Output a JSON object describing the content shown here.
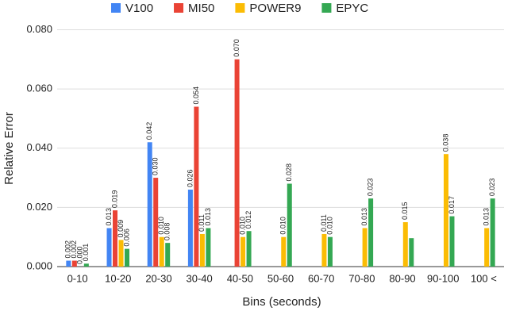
{
  "chart_data": {
    "type": "bar",
    "x_label": "Bins (seconds)",
    "y_label": "Relative Error",
    "categories": [
      "0-10",
      "10-20",
      "20-30",
      "30-40",
      "40-50",
      "50-60",
      "60-70",
      "70-80",
      "80-90",
      "90-100",
      "100 <"
    ],
    "series": [
      {
        "name": "V100",
        "color": "#4285f4",
        "values": [
          0.002,
          0.013,
          0.042,
          0.026,
          null,
          null,
          null,
          null,
          null,
          null,
          null
        ],
        "value_labels": [
          "0.002",
          "0.013",
          "0.042",
          "0.026",
          null,
          null,
          null,
          null,
          null,
          null,
          null
        ]
      },
      {
        "name": "MI50",
        "color": "#ea4335",
        "values": [
          0.002,
          0.019,
          0.03,
          0.054,
          0.07,
          null,
          null,
          null,
          null,
          null,
          null
        ],
        "value_labels": [
          "0.002",
          "0.019",
          "0.030",
          "0.054",
          "0.070",
          null,
          null,
          null,
          null,
          null,
          null
        ]
      },
      {
        "name": "POWER9",
        "color": "#fbbc04",
        "values": [
          0,
          0.009,
          0.01,
          0.011,
          0.01,
          0.01,
          0.011,
          0.013,
          0.015,
          0.038,
          0.013
        ],
        "value_labels": [
          "0.000",
          "0.009",
          "0.010",
          "0.011",
          "0.010",
          "0.010",
          "0.011",
          "0.013",
          "0.015",
          "0.038",
          "0.013"
        ]
      },
      {
        "name": "EPYC",
        "color": "#34a853",
        "values": [
          0.001,
          0.006,
          0.008,
          0.013,
          0.012,
          0.028,
          0.01,
          0.023,
          0.0096,
          0.017,
          0.023
        ],
        "value_labels": [
          "0.001",
          "0.006",
          "0.008",
          "0.013",
          "0.012",
          "0.028",
          "0.010",
          "0.023",
          null,
          "0.017",
          "0.023"
        ]
      }
    ],
    "ylim": [
      0,
      0.082
    ],
    "yticks": [
      {
        "value": 0,
        "label": "0.000"
      },
      {
        "value": 0.02,
        "label": "0.020"
      },
      {
        "value": 0.04,
        "label": "0.040"
      },
      {
        "value": 0.06,
        "label": "0.060"
      },
      {
        "value": 0.08,
        "label": "0.080"
      }
    ],
    "grid": true,
    "legend": "top"
  }
}
